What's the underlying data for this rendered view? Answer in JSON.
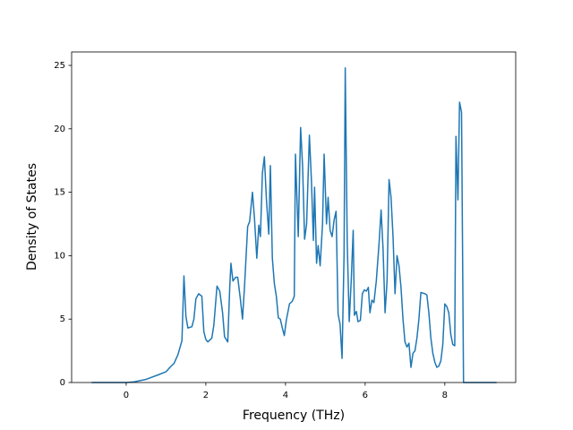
{
  "chart_data": {
    "type": "line",
    "xlabel": "Frequency (THz)",
    "ylabel": "Density of States",
    "color": "#1f77b4",
    "xlim": [
      -1.37,
      9.78
    ],
    "ylim": [
      0,
      26.06
    ],
    "xticks": [
      0,
      2,
      4,
      6,
      8
    ],
    "yticks": [
      0,
      5,
      10,
      15,
      20,
      25
    ],
    "x": [
      -0.87,
      0,
      0.2,
      0.5,
      0.8,
      1.0,
      1.1,
      1.2,
      1.3,
      1.4,
      1.45,
      1.5,
      1.55,
      1.65,
      1.7,
      1.75,
      1.82,
      1.9,
      1.95,
      2.0,
      2.05,
      2.15,
      2.2,
      2.28,
      2.35,
      2.42,
      2.47,
      2.55,
      2.6,
      2.63,
      2.68,
      2.75,
      2.8,
      2.87,
      2.92,
      2.97,
      3.05,
      3.1,
      3.17,
      3.22,
      3.28,
      3.33,
      3.37,
      3.42,
      3.47,
      3.52,
      3.58,
      3.62,
      3.67,
      3.72,
      3.77,
      3.82,
      3.87,
      3.92,
      3.97,
      4.02,
      4.1,
      4.17,
      4.22,
      4.25,
      4.32,
      4.38,
      4.43,
      4.48,
      4.53,
      4.6,
      4.65,
      4.7,
      4.73,
      4.78,
      4.82,
      4.87,
      4.93,
      4.97,
      5.03,
      5.07,
      5.12,
      5.17,
      5.22,
      5.27,
      5.32,
      5.37,
      5.42,
      5.47,
      5.5,
      5.55,
      5.6,
      5.65,
      5.7,
      5.73,
      5.78,
      5.82,
      5.88,
      5.93,
      5.98,
      6.03,
      6.08,
      6.12,
      6.17,
      6.22,
      6.28,
      6.35,
      6.4,
      6.45,
      6.5,
      6.55,
      6.6,
      6.65,
      6.7,
      6.75,
      6.8,
      6.85,
      6.9,
      6.95,
      7.0,
      7.05,
      7.1,
      7.15,
      7.2,
      7.25,
      7.3,
      7.35,
      7.4,
      7.5,
      7.55,
      7.6,
      7.65,
      7.7,
      7.75,
      7.8,
      7.85,
      7.9,
      7.95,
      8.0,
      8.05,
      8.1,
      8.15,
      8.2,
      8.25,
      8.28,
      8.33,
      8.37,
      8.42,
      8.47,
      9.3
    ],
    "values": [
      0,
      0,
      0.05,
      0.25,
      0.6,
      0.85,
      1.2,
      1.5,
      2.2,
      3.3,
      8.4,
      5.2,
      4.3,
      4.4,
      5.0,
      6.6,
      7.0,
      6.8,
      4.0,
      3.4,
      3.2,
      3.5,
      4.5,
      7.6,
      7.2,
      5.5,
      3.6,
      3.2,
      7.5,
      9.4,
      8.0,
      8.3,
      8.3,
      6.5,
      5.0,
      7.5,
      12.3,
      12.7,
      15.0,
      13.0,
      9.8,
      12.4,
      11.5,
      16.5,
      17.8,
      14.5,
      11.7,
      17.1,
      9.8,
      7.8,
      6.8,
      5.1,
      5.0,
      4.3,
      3.7,
      4.9,
      6.2,
      6.4,
      6.8,
      18.0,
      11.5,
      20.1,
      17.0,
      11.3,
      12.5,
      19.5,
      16.0,
      11.2,
      15.4,
      9.4,
      10.8,
      9.2,
      12.5,
      18.0,
      12.5,
      14.6,
      12.0,
      11.5,
      12.8,
      13.5,
      5.4,
      4.6,
      1.9,
      10.0,
      24.8,
      11.0,
      4.8,
      8.0,
      12.0,
      5.3,
      5.6,
      4.8,
      4.9,
      7.0,
      7.3,
      7.2,
      7.5,
      5.5,
      6.5,
      6.3,
      8.0,
      11.0,
      13.6,
      10.5,
      5.5,
      8.0,
      16.0,
      14.6,
      11.5,
      7.0,
      10.0,
      9.2,
      7.5,
      5.0,
      3.2,
      2.8,
      3.1,
      1.2,
      2.3,
      2.5,
      3.5,
      5.0,
      7.1,
      7.0,
      6.9,
      5.5,
      3.5,
      2.3,
      1.6,
      1.2,
      1.3,
      1.7,
      3.0,
      6.2,
      6.0,
      5.5,
      3.8,
      3.0,
      2.9,
      19.4,
      14.4,
      22.1,
      21.3,
      0,
      0
    ]
  }
}
